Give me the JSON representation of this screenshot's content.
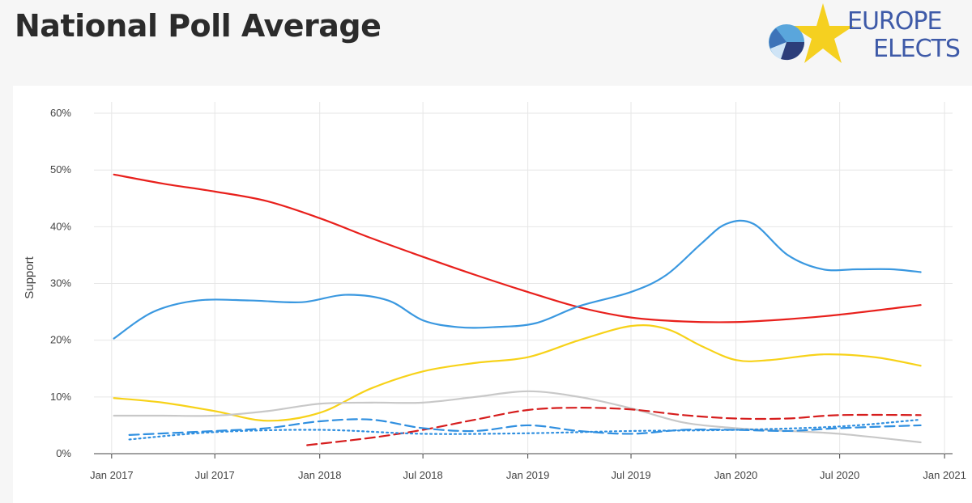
{
  "header": {
    "title": "National Poll Average",
    "logo_line1": "EUROPE",
    "logo_line2": "ELECTS"
  },
  "chart_data": {
    "type": "line",
    "ylabel": "Support",
    "ylim": [
      0,
      0.62
    ],
    "y_ticks": [
      0,
      0.1,
      0.2,
      0.3,
      0.4,
      0.5,
      0.6
    ],
    "y_tick_labels": [
      "0%",
      "10%",
      "20%",
      "30%",
      "40%",
      "50%",
      "60%"
    ],
    "x_range": [
      "2016-12-01",
      "2021-01-15"
    ],
    "x_ticks": [
      "2017-01-01",
      "2017-07-01",
      "2018-01-01",
      "2018-07-01",
      "2019-01-01",
      "2019-07-01",
      "2020-01-01",
      "2020-07-01",
      "2021-01-01"
    ],
    "x_tick_labels": [
      "Jan 2017",
      "Jul 2017",
      "Jan 2018",
      "Jul 2018",
      "Jan 2019",
      "Jul 2019",
      "Jan 2020",
      "Jul 2020",
      "Jan 2021"
    ],
    "grid": true,
    "series": [
      {
        "color": "#e8201c",
        "dash": "solid",
        "x": [
          "2017-01-05",
          "2017-04-01",
          "2017-07-01",
          "2017-10-01",
          "2018-01-01",
          "2018-04-01",
          "2018-07-01",
          "2018-10-01",
          "2019-01-01",
          "2019-04-01",
          "2019-07-01",
          "2019-10-01",
          "2020-01-01",
          "2020-04-01",
          "2020-07-01",
          "2020-11-20"
        ],
        "values": [
          0.492,
          0.476,
          0.462,
          0.445,
          0.415,
          0.38,
          0.347,
          0.315,
          0.285,
          0.258,
          0.24,
          0.233,
          0.232,
          0.237,
          0.245,
          0.262
        ]
      },
      {
        "color": "#3a98e0",
        "dash": "solid",
        "x": [
          "2017-01-05",
          "2017-03-15",
          "2017-06-01",
          "2017-09-01",
          "2017-12-01",
          "2018-02-15",
          "2018-05-01",
          "2018-07-01",
          "2018-09-01",
          "2018-11-01",
          "2019-01-15",
          "2019-04-01",
          "2019-07-01",
          "2019-09-01",
          "2019-11-01",
          "2019-12-15",
          "2020-02-01",
          "2020-04-01",
          "2020-06-01",
          "2020-08-01",
          "2020-10-01",
          "2020-11-20"
        ],
        "values": [
          0.203,
          0.25,
          0.27,
          0.27,
          0.267,
          0.28,
          0.27,
          0.235,
          0.223,
          0.223,
          0.23,
          0.26,
          0.285,
          0.315,
          0.37,
          0.405,
          0.405,
          0.35,
          0.325,
          0.325,
          0.325,
          0.32
        ]
      },
      {
        "color": "#f7d219",
        "dash": "solid",
        "x": [
          "2017-01-05",
          "2017-04-01",
          "2017-07-01",
          "2017-10-01",
          "2018-01-01",
          "2018-04-01",
          "2018-07-01",
          "2018-10-01",
          "2019-01-01",
          "2019-04-01",
          "2019-07-01",
          "2019-09-01",
          "2019-11-01",
          "2020-01-01",
          "2020-03-01",
          "2020-06-01",
          "2020-09-01",
          "2020-11-20"
        ],
        "values": [
          0.098,
          0.09,
          0.075,
          0.058,
          0.072,
          0.115,
          0.145,
          0.16,
          0.17,
          0.2,
          0.225,
          0.22,
          0.19,
          0.165,
          0.165,
          0.175,
          0.17,
          0.155
        ]
      },
      {
        "color": "#c8c8c8",
        "dash": "solid",
        "x": [
          "2017-01-05",
          "2017-04-01",
          "2017-07-01",
          "2017-10-01",
          "2018-01-01",
          "2018-04-01",
          "2018-07-01",
          "2018-10-01",
          "2019-01-01",
          "2019-04-01",
          "2019-07-01",
          "2019-10-01",
          "2020-01-01",
          "2020-04-01",
          "2020-07-01",
          "2020-11-20"
        ],
        "values": [
          0.067,
          0.067,
          0.067,
          0.075,
          0.088,
          0.09,
          0.09,
          0.1,
          0.11,
          0.1,
          0.08,
          0.055,
          0.045,
          0.04,
          0.035,
          0.02
        ]
      },
      {
        "color": "#d61d1d",
        "dash": "dashed",
        "x": [
          "2017-12-10",
          "2018-04-01",
          "2018-07-01",
          "2018-10-01",
          "2019-01-01",
          "2019-04-01",
          "2019-07-01",
          "2019-10-01",
          "2020-01-01",
          "2020-04-01",
          "2020-07-01",
          "2020-11-20"
        ],
        "values": [
          0.015,
          0.028,
          0.042,
          0.06,
          0.077,
          0.081,
          0.078,
          0.068,
          0.062,
          0.062,
          0.068,
          0.068
        ]
      },
      {
        "color": "#2f8fe0",
        "dash": "dashed",
        "x": [
          "2017-02-01",
          "2017-07-01",
          "2017-10-01",
          "2018-01-01",
          "2018-04-01",
          "2018-07-01",
          "2018-10-01",
          "2019-01-01",
          "2019-04-01",
          "2019-07-01",
          "2019-10-01",
          "2020-01-01",
          "2020-04-01",
          "2020-07-01",
          "2020-11-20"
        ],
        "values": [
          0.033,
          0.04,
          0.045,
          0.057,
          0.06,
          0.045,
          0.04,
          0.05,
          0.04,
          0.035,
          0.042,
          0.042,
          0.04,
          0.045,
          0.05
        ]
      },
      {
        "color": "#2f8fe0",
        "dash": "dotted",
        "x": [
          "2017-02-01",
          "2017-07-01",
          "2018-01-01",
          "2018-07-01",
          "2019-01-01",
          "2019-07-01",
          "2020-01-01",
          "2020-07-01",
          "2020-11-20"
        ],
        "values": [
          0.025,
          0.038,
          0.042,
          0.035,
          0.036,
          0.04,
          0.042,
          0.048,
          0.06
        ]
      }
    ]
  }
}
